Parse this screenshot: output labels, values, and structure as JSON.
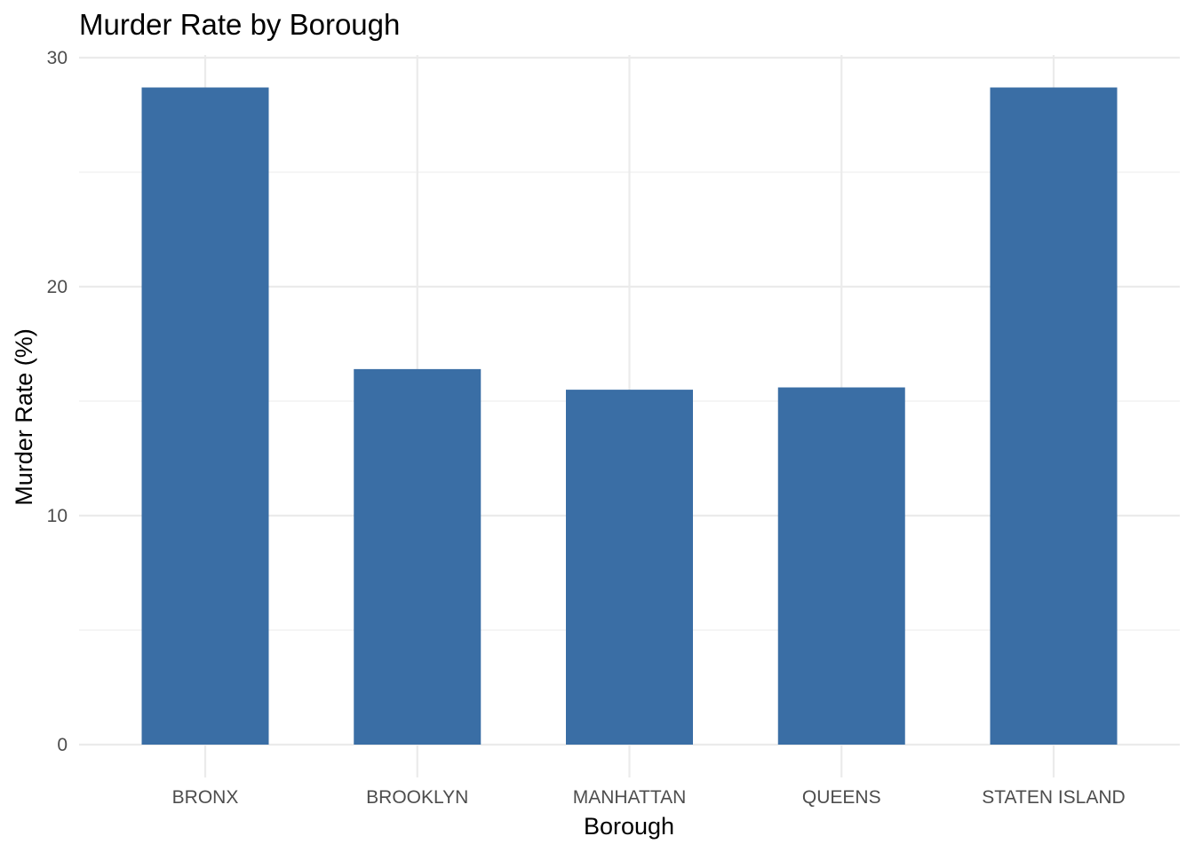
{
  "chart_data": {
    "type": "bar",
    "title": "Murder Rate by Borough",
    "xlabel": "Borough",
    "ylabel": "Murder Rate (%)",
    "categories": [
      "BRONX",
      "BROOKLYN",
      "MANHATTAN",
      "QUEENS",
      "STATEN ISLAND"
    ],
    "values": [
      28.7,
      16.4,
      15.5,
      15.6,
      28.7
    ],
    "ylim": [
      0,
      30
    ],
    "yticks": [
      "0",
      "10",
      "20",
      "30"
    ],
    "grid": true,
    "legend": "none",
    "bar_color": "#3A6EA5",
    "grid_color": "#EBEBEB"
  }
}
